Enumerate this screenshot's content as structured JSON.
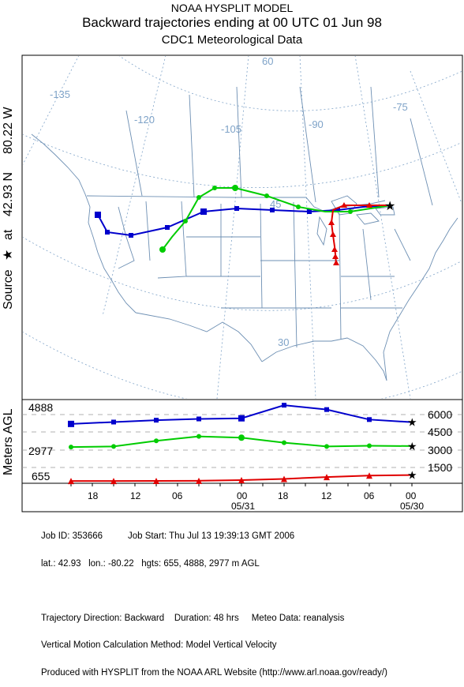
{
  "header": {
    "line1": "NOAA HYSPLIT MODEL",
    "line2": "Backward trajectories ending at 00 UTC 01 Jun 98",
    "line3": "CDC1 Meteorological Data"
  },
  "source_label": {
    "source_text": "Source",
    "star": "★",
    "at_text": "at",
    "lat": "42.93 N",
    "lon": "80.22 W"
  },
  "map": {
    "longitude_labels": [
      "-135",
      "-120",
      "-105",
      "-90",
      "-75",
      "60"
    ],
    "latitude_labels": [
      "45",
      "30"
    ],
    "source": {
      "lat": 42.93,
      "lon": -80.22
    }
  },
  "vertical_panel": {
    "ylabel": "Meters AGL",
    "right_ticks": [
      "6000",
      "4500",
      "3000",
      "1500"
    ],
    "left_heights": [
      "4888",
      "2977",
      "655"
    ],
    "time_ticks": [
      "18",
      "12",
      "06",
      "00",
      "18",
      "12",
      "06",
      "00"
    ],
    "date_labels": [
      "05/31",
      "05/30"
    ]
  },
  "chart_data": {
    "type": "line",
    "title": "",
    "xlabel": "",
    "ylabel": "Meters AGL",
    "x": [
      0,
      -6,
      -12,
      -18,
      -24,
      -30,
      -36,
      -42,
      -48
    ],
    "series": [
      {
        "values": [
          4888,
          5100,
          5900,
          6250,
          5200,
          5150,
          5050,
          4900,
          4750
        ]
      },
      {
        "values": [
          2977,
          3000,
          2950,
          3250,
          3650,
          3750,
          3400,
          2950,
          2900
        ]
      },
      {
        "values": [
          655,
          620,
          500,
          350,
          250,
          200,
          190,
          180,
          180
        ]
      }
    ],
    "colors": [
      "#0000cc",
      "#00cc00",
      "#e00000"
    ],
    "ylim": [
      0,
      6700
    ]
  },
  "footer": {
    "line1": "Job ID: 353666          Job Start: Thu Jul 13 19:39:13 GMT 2006",
    "line2": "lat.: 42.93   lon.: -80.22   hgts: 655, 4888, 2977 m AGL",
    "line3": "",
    "line4": "Trajectory Direction: Backward    Duration: 48 hrs     Meteo Data: reanalysis",
    "line5": "Vertical Motion Calculation Method: Model Vertical Velocity",
    "line6": "Produced with HYSPLIT from the NOAA ARL Website (http://www.arl.noaa.gov/ready/)"
  }
}
